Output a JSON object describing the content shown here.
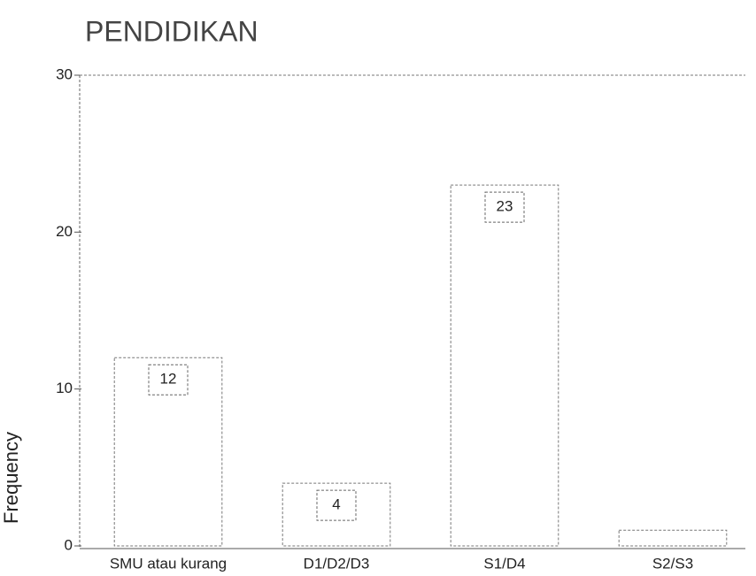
{
  "chart_data": {
    "type": "bar",
    "title": "PENDIDIKAN",
    "ylabel": "Frequency",
    "categories": [
      "SMU atau kurang",
      "D1/D2/D3",
      "S1/D4",
      "S2/S3"
    ],
    "values": [
      12,
      4,
      23,
      1
    ],
    "value_labels": [
      "12",
      "4",
      "23",
      null
    ],
    "color": "#ffffff",
    "ylim": [
      0,
      30
    ],
    "yticks": [
      0,
      10,
      20,
      30
    ],
    "grid": false
  }
}
